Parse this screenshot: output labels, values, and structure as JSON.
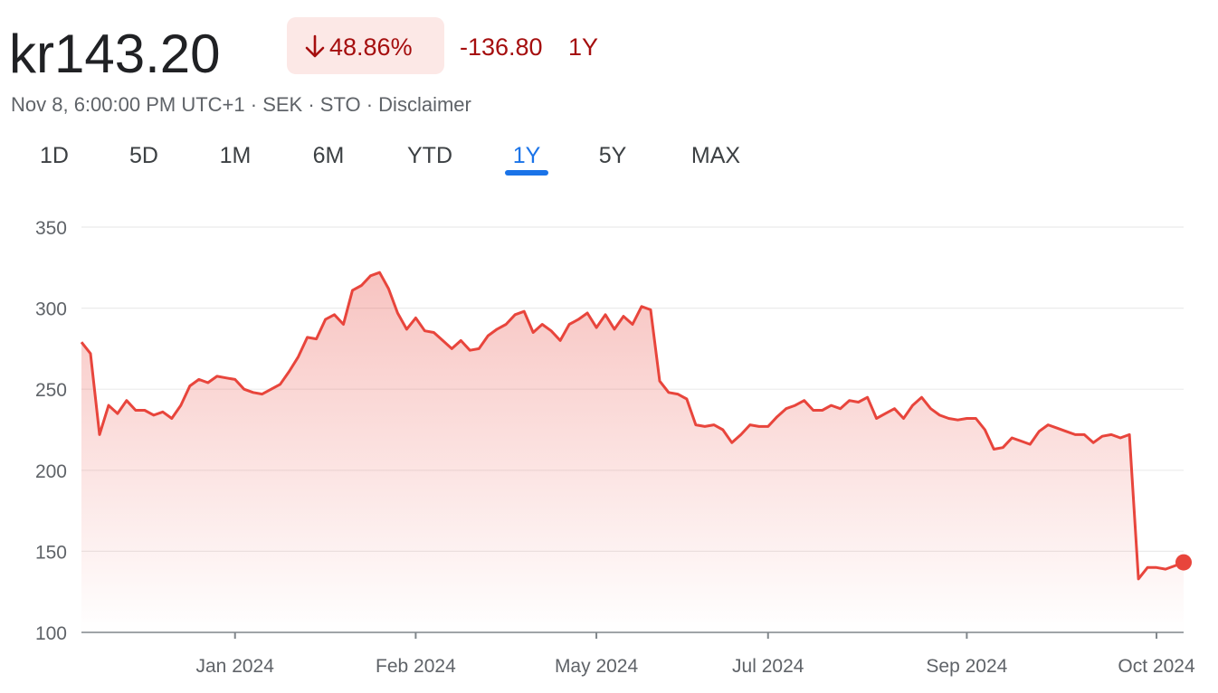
{
  "header": {
    "price": "kr143.20",
    "change_percent": "48.86%",
    "change_abs": "-136.80",
    "period": "1Y",
    "info": [
      "Nov 8, 6:00:00 PM UTC+1",
      "SEK",
      "STO",
      "Disclaimer"
    ]
  },
  "tabs": [
    {
      "label": "1D",
      "selected": false
    },
    {
      "label": "5D",
      "selected": false
    },
    {
      "label": "1M",
      "selected": false
    },
    {
      "label": "6M",
      "selected": false
    },
    {
      "label": "YTD",
      "selected": false
    },
    {
      "label": "1Y",
      "selected": true
    },
    {
      "label": "5Y",
      "selected": false
    },
    {
      "label": "MAX",
      "selected": false
    }
  ],
  "chart_data": {
    "type": "line",
    "color": "#e8453c",
    "categories": [
      null,
      null,
      null,
      null,
      null,
      null,
      null,
      null,
      null,
      null,
      null,
      null,
      null,
      null,
      null,
      null,
      null,
      "Jan 2024",
      null,
      null,
      null,
      null,
      null,
      null,
      null,
      null,
      null,
      null,
      null,
      null,
      null,
      null,
      null,
      null,
      null,
      null,
      null,
      "Feb 2024",
      null,
      null,
      null,
      null,
      null,
      null,
      null,
      null,
      null,
      null,
      null,
      null,
      null,
      null,
      null,
      null,
      null,
      null,
      null,
      "May 2024",
      null,
      null,
      null,
      null,
      null,
      null,
      null,
      null,
      null,
      null,
      null,
      null,
      null,
      null,
      null,
      null,
      null,
      null,
      "Jul 2024",
      null,
      null,
      null,
      null,
      null,
      null,
      null,
      null,
      null,
      null,
      null,
      null,
      null,
      null,
      null,
      null,
      null,
      null,
      null,
      null,
      null,
      "Sep 2024",
      null,
      null,
      null,
      null,
      null,
      null,
      null,
      null,
      null,
      null,
      null,
      null,
      null,
      null,
      null,
      null,
      null,
      null,
      null,
      null,
      "Oct 2024",
      null,
      null,
      null
    ],
    "values": [
      279,
      272,
      222,
      240,
      235,
      243,
      237,
      237,
      234,
      236,
      232,
      240,
      252,
      256,
      254,
      258,
      257,
      256,
      250,
      248,
      247,
      250,
      253,
      261,
      270,
      282,
      281,
      293,
      296,
      290,
      311,
      314,
      320,
      322,
      312,
      297,
      287,
      294,
      286,
      285,
      280,
      275,
      280,
      274,
      275,
      283,
      287,
      290,
      296,
      298,
      285,
      290,
      286,
      280,
      290,
      293,
      297,
      288,
      296,
      287,
      295,
      290,
      301,
      299,
      255,
      248,
      247,
      244,
      228,
      227,
      228,
      225,
      217,
      222,
      228,
      227,
      227,
      233,
      238,
      240,
      243,
      237,
      237,
      240,
      238,
      243,
      242,
      245,
      232,
      235,
      238,
      232,
      240,
      245,
      238,
      234,
      232,
      231,
      232,
      232,
      225,
      213,
      214,
      220,
      218,
      216,
      224,
      228,
      226,
      224,
      222,
      222,
      217,
      221,
      222,
      220,
      222,
      133,
      140,
      140,
      139,
      141,
      143.2
    ],
    "ylim": [
      100,
      350
    ],
    "yticks": [
      100,
      150,
      200,
      250,
      300,
      350
    ],
    "grid": true
  }
}
